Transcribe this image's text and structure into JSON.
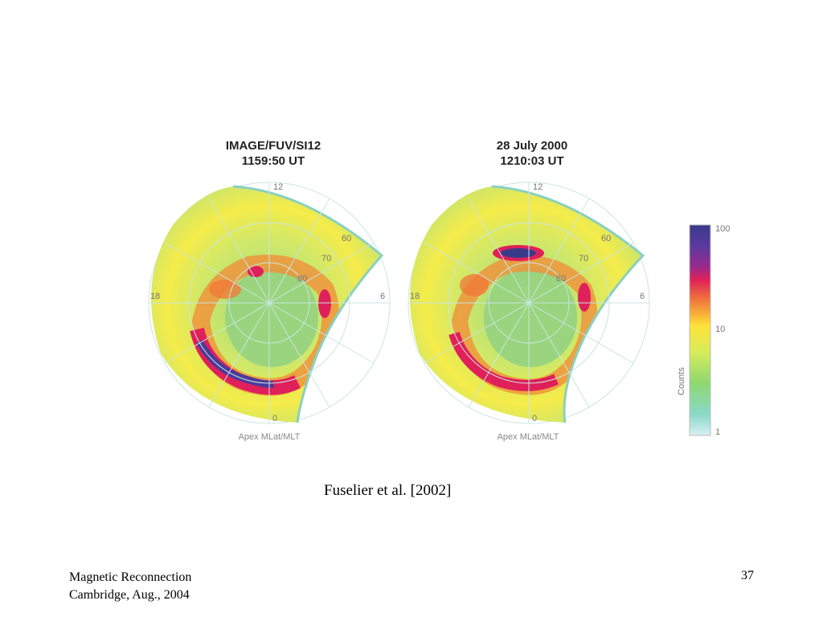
{
  "panels": [
    {
      "title_line1": "IMAGE/FUV/SI12",
      "title_line2": "1159:50 UT",
      "footer": "Apex MLat/MLT",
      "mlt_labels": {
        "top": "12",
        "left": "18",
        "right": "6",
        "bottom": "0"
      },
      "lat_labels": [
        "60",
        "70",
        "80"
      ]
    },
    {
      "title_line1": "28 July 2000",
      "title_line2": "1210:03 UT",
      "footer": "Apex MLat/MLT",
      "mlt_labels": {
        "top": "12",
        "left": "18",
        "right": "6",
        "bottom": "0"
      },
      "lat_labels": [
        "60",
        "70",
        "80"
      ]
    }
  ],
  "colorbar": {
    "label": "Counts",
    "ticks": [
      "100",
      "10",
      "1"
    ],
    "colors": [
      "#3a3a8a",
      "#5a3aa0",
      "#9a2a8a",
      "#e0205a",
      "#f07a3a",
      "#ffe23a",
      "#d8ec5a",
      "#8ed870",
      "#8ad8c8",
      "#d8f0f4"
    ]
  },
  "caption": "Fuselier et al. [2002]",
  "footer": {
    "line1": "Magnetic Reconnection",
    "line2": "Cambridge, Aug., 2004",
    "page_number": "37"
  }
}
